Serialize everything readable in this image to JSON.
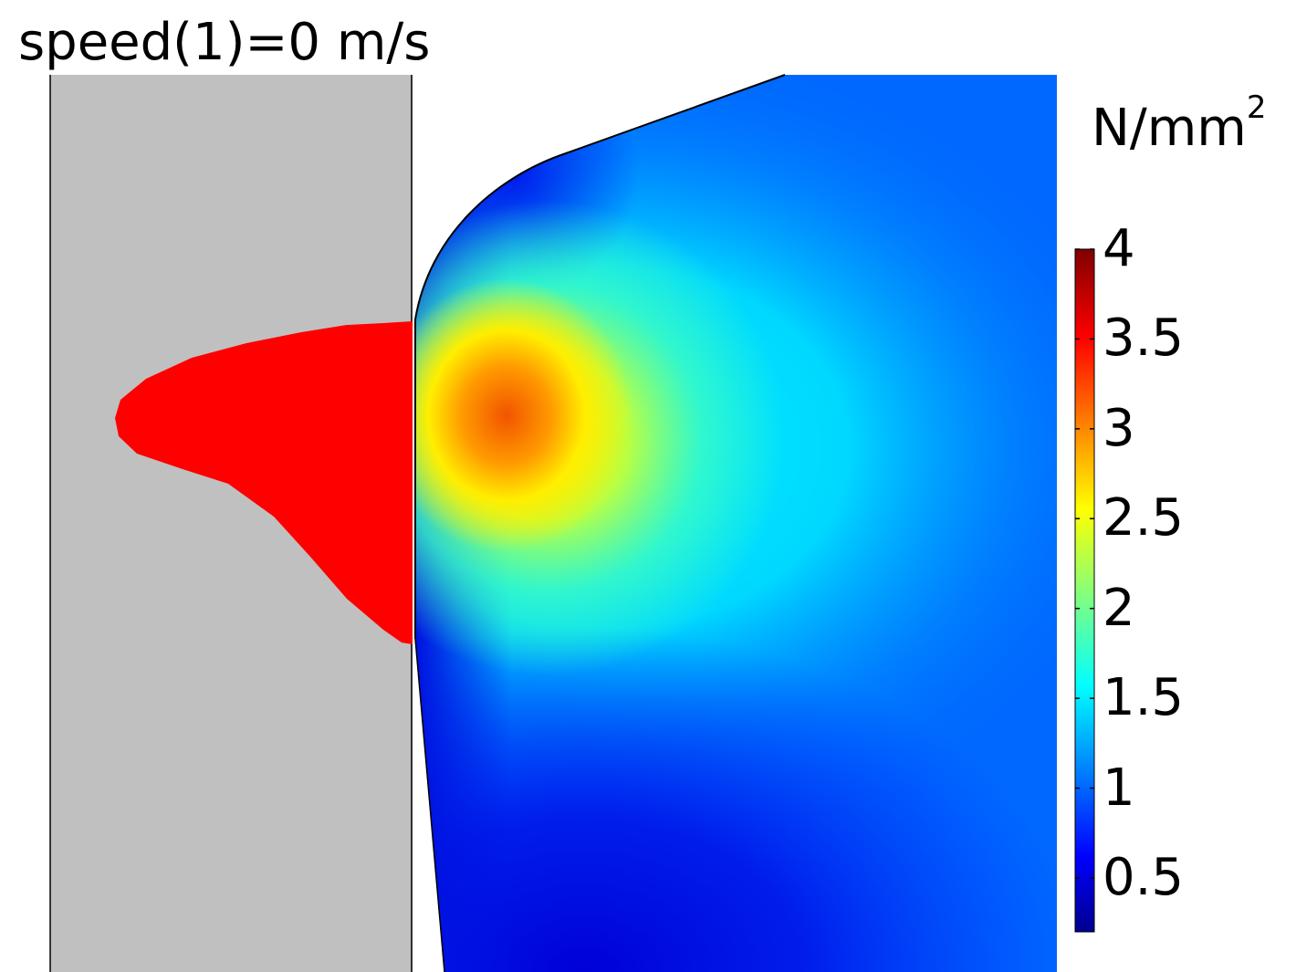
{
  "title": "speed(1)=0 m/s",
  "colorbar": {
    "unit_base": "N/mm",
    "unit_exponent": "2",
    "ticks": [
      "4",
      "3.5",
      "3",
      "2.5",
      "2",
      "1.5",
      "1",
      "0.5"
    ],
    "tick_values": [
      4,
      3.5,
      3,
      2.5,
      2,
      1.5,
      1,
      0.5
    ],
    "range": [
      0.2,
      4
    ],
    "colormap": "jet"
  },
  "colors": {
    "workpiece_gray": "#c0c0c0",
    "plastic_zone_red": "#ff0000",
    "outline": "#000000"
  }
}
